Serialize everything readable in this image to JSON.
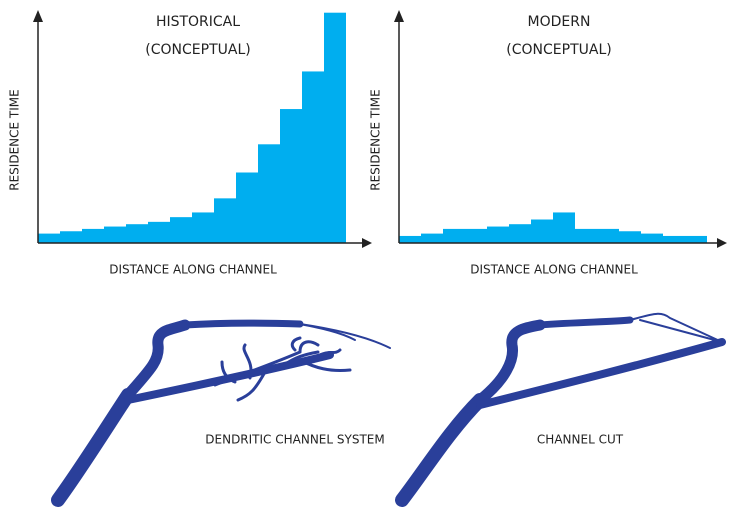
{
  "chart_data": [
    {
      "type": "bar",
      "title": "HISTORICAL",
      "subtitle": "(CONCEPTUAL)",
      "x_label": "DISTANCE ALONG CHANNEL",
      "y_label": "RESIDENCE TIME",
      "values": [
        4,
        5,
        6,
        7,
        8,
        9,
        11,
        13,
        19,
        30,
        42,
        57,
        73,
        98
      ],
      "color": "#00aeef",
      "ylim": [
        0,
        100
      ]
    },
    {
      "type": "bar",
      "title": "MODERN",
      "subtitle": "(CONCEPTUAL)",
      "x_label": "DISTANCE ALONG CHANNEL",
      "y_label": "RESIDENCE TIME",
      "values": [
        3,
        4,
        6,
        6,
        7,
        8,
        10,
        13,
        6,
        6,
        5,
        4,
        3,
        3
      ],
      "color": "#00aeef",
      "ylim": [
        0,
        100
      ]
    }
  ],
  "diagrams": [
    {
      "label": "DENDRITIC CHANNEL SYSTEM"
    },
    {
      "label": "CHANNEL CUT"
    }
  ]
}
